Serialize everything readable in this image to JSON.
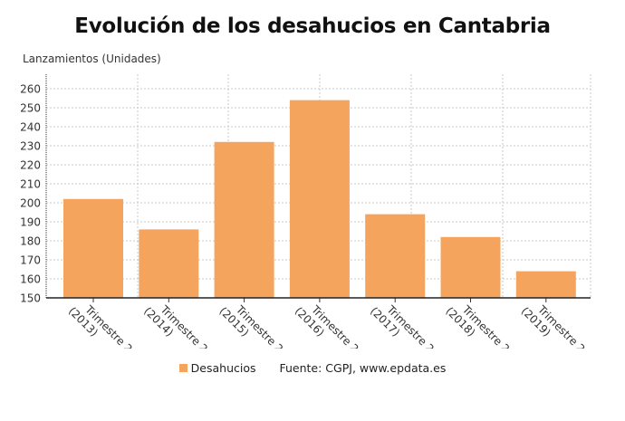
{
  "chart_data": {
    "type": "bar",
    "title": "Evolución de los desahucios en Cantabria",
    "ylabel": "Lanzamientos (Unidades)",
    "xlabel": "",
    "categories": [
      "Trimestre 2 (2013)",
      "Trimestre 2 (2014)",
      "Trimestre 2 (2015)",
      "Trimestre 2 (2016)",
      "Trimestre 2 (2017)",
      "Trimestre 2 (2018)",
      "Trimestre 2 (2019)"
    ],
    "category_lines": [
      [
        "Trimestre 2",
        "(2013)"
      ],
      [
        "Trimestre 2",
        "(2014)"
      ],
      [
        "Trimestre 2",
        "(2015)"
      ],
      [
        "Trimestre 2",
        "(2016)"
      ],
      [
        "Trimestre 2",
        "(2017)"
      ],
      [
        "Trimestre 2",
        "(2018)"
      ],
      [
        "Trimestre 2",
        "(2019)"
      ]
    ],
    "series": [
      {
        "name": "Desahucios",
        "values": [
          202,
          186,
          232,
          254,
          194,
          182,
          164
        ],
        "color": "#f5a45d"
      }
    ],
    "ylim": [
      150,
      263
    ],
    "yticks": [
      150,
      160,
      170,
      180,
      190,
      200,
      210,
      220,
      230,
      240,
      250,
      260
    ],
    "grid": true,
    "legend_position": "bottom",
    "source": "Fuente: CGPJ, www.epdata.es"
  }
}
